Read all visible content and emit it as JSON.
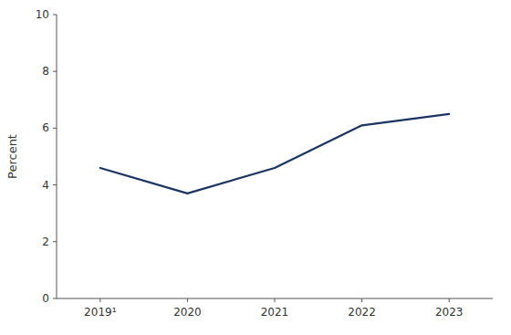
{
  "chart_data": {
    "type": "line",
    "categories": [
      "2019¹",
      "2020",
      "2021",
      "2022",
      "2023"
    ],
    "values": [
      4.6,
      3.7,
      4.6,
      6.1,
      6.5
    ],
    "color": "#1c3461",
    "ylabel": "Percent",
    "ylim": [
      0,
      10
    ],
    "yticks": [
      0,
      2,
      4,
      6,
      8,
      10
    ],
    "grid": false
  }
}
